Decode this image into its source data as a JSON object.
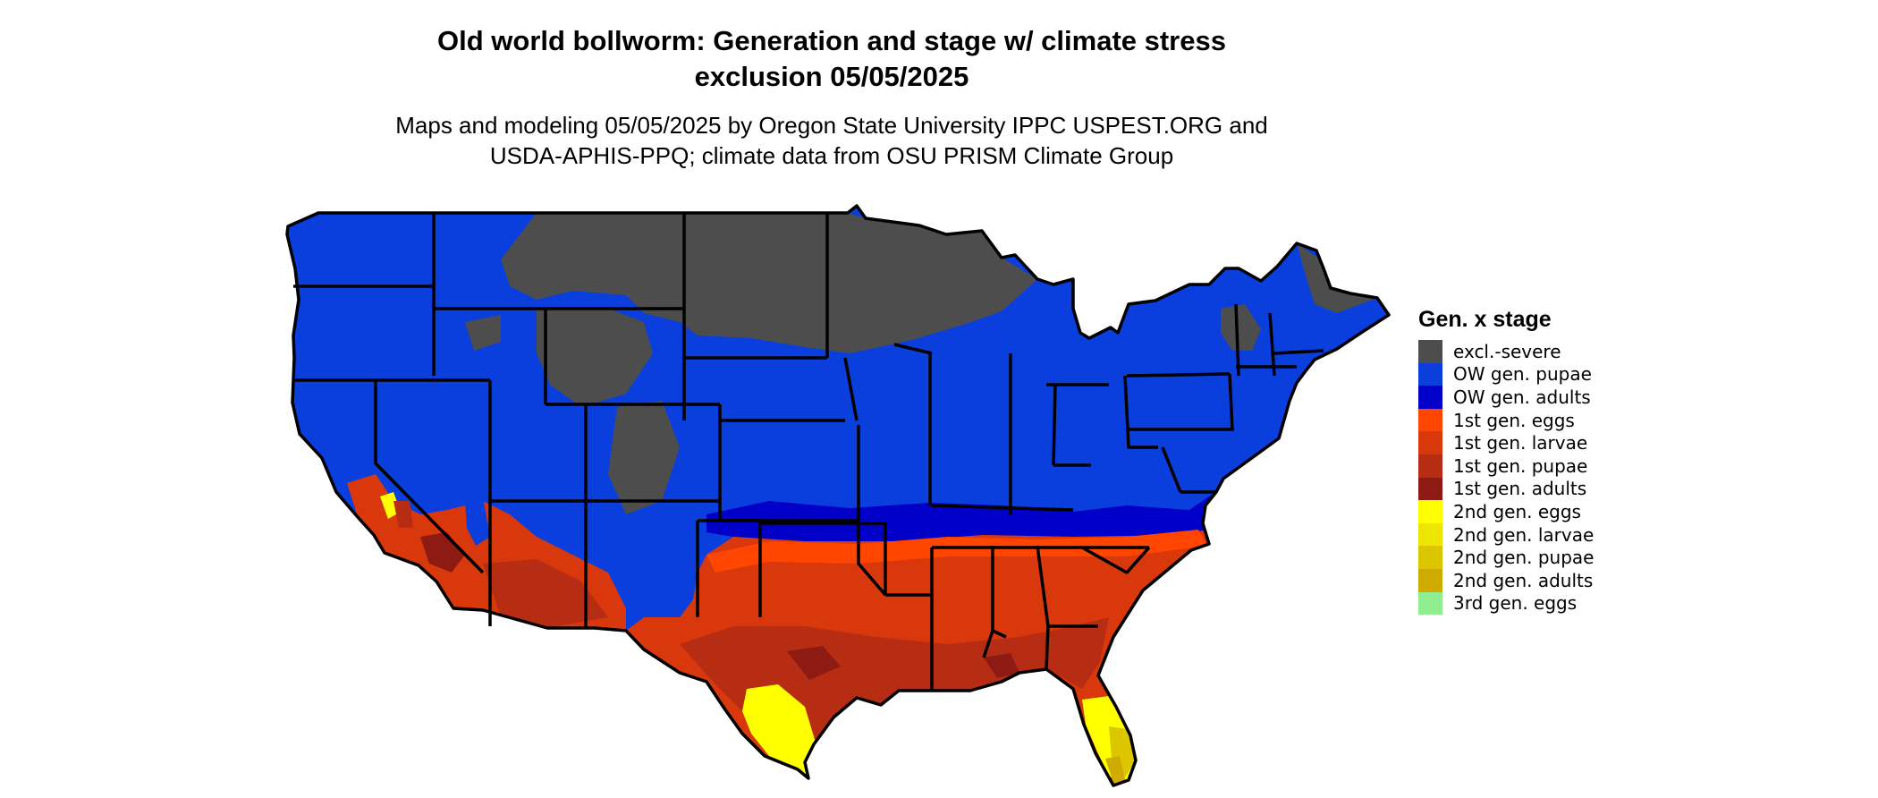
{
  "title": {
    "line1": "Old world bollworm: Generation and stage w/ climate stress",
    "line2": "exclusion 05/05/2025"
  },
  "subtitle": {
    "line1": "Maps and modeling 05/05/2025 by Oregon State University IPPC USPEST.ORG and",
    "line2": "USDA-APHIS-PPQ; climate data from OSU PRISM Climate Group"
  },
  "legend": {
    "title": "Gen. x stage",
    "items": [
      {
        "label": "excl.-severe",
        "color": "#4d4d4d"
      },
      {
        "label": "OW gen. pupae",
        "color": "#0a3fde"
      },
      {
        "label": "OW gen. adults",
        "color": "#0000c8"
      },
      {
        "label": "1st gen. eggs",
        "color": "#ff4500"
      },
      {
        "label": "1st gen. larvae",
        "color": "#d8380c"
      },
      {
        "label": "1st gen. pupae",
        "color": "#b72d14"
      },
      {
        "label": "1st gen. adults",
        "color": "#8e1a14"
      },
      {
        "label": "2nd gen. eggs",
        "color": "#ffff00"
      },
      {
        "label": "2nd gen. larvae",
        "color": "#eee600"
      },
      {
        "label": "2nd gen. pupae",
        "color": "#dcc600"
      },
      {
        "label": "2nd gen. adults",
        "color": "#cfaa00"
      },
      {
        "label": "3rd gen. eggs",
        "color": "#90ee90"
      }
    ]
  }
}
